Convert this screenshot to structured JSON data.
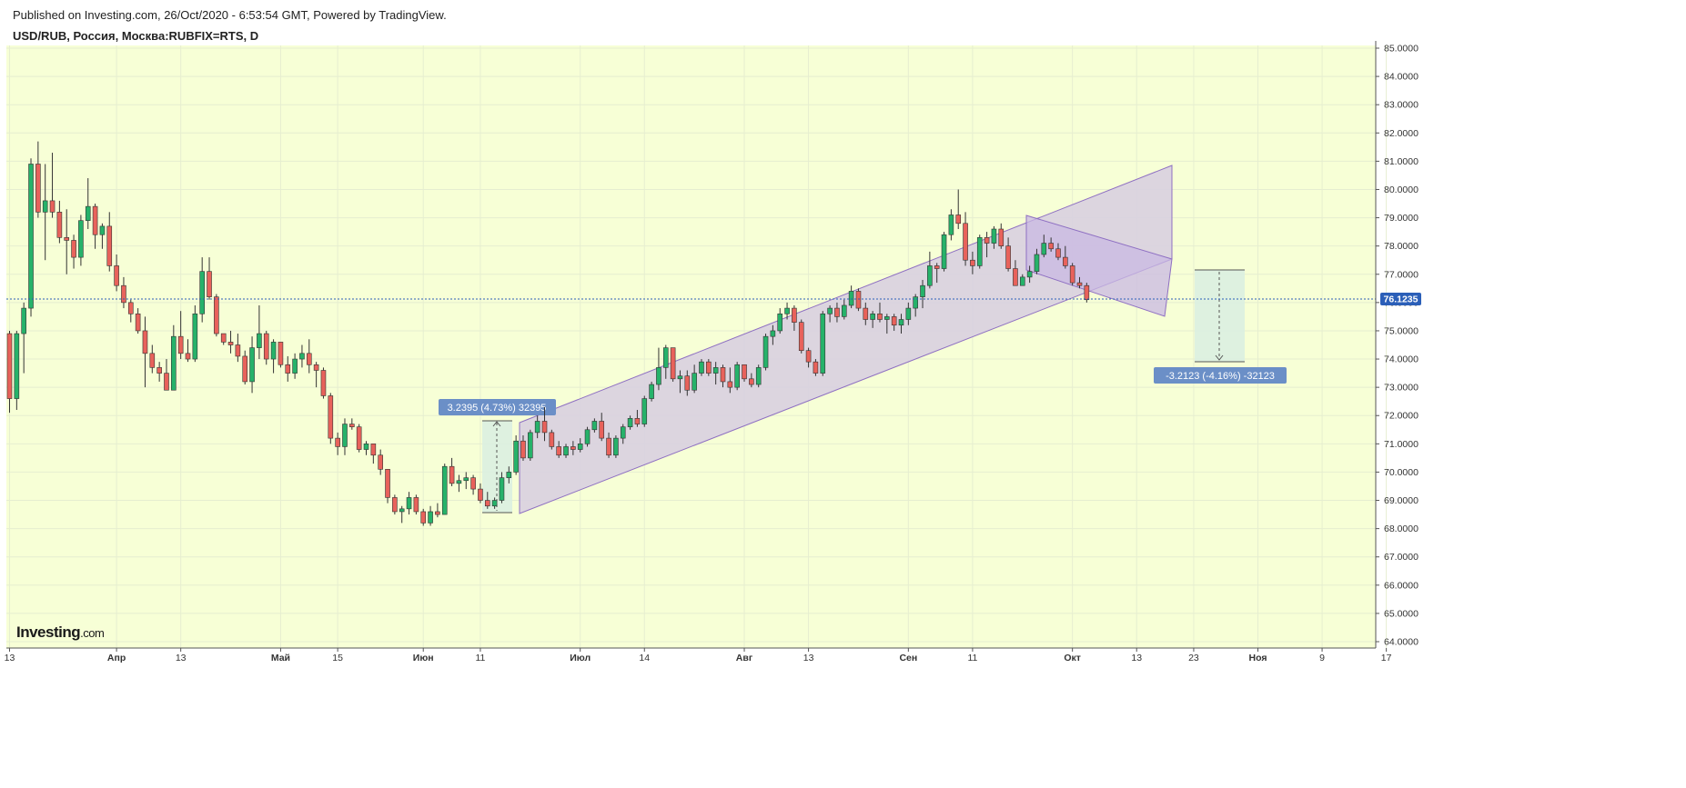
{
  "header": {
    "published": "Published on Investing.com, 26/Oct/2020 - 6:53:54 GMT, Powered by TradingView.",
    "symbol": "USD/RUB, Россия, Москва:RUBFIX=RTS, D"
  },
  "logo": {
    "main": "Investing",
    "suffix": ".com"
  },
  "colors": {
    "background": "#f7ffd6",
    "up": "#26b26a",
    "down": "#e8625b",
    "grid": "#e6eed0",
    "channel_fill": "#d8d0e0",
    "flag_fill": "#c9b8e3",
    "channel_line": "#8e6fc2",
    "label_bg": "#6b8fc7",
    "measure_fill": "#d9efe2",
    "last_price_line": "#2b5fb8"
  },
  "chart_data": {
    "type": "candlestick",
    "ylim": [
      63.8,
      85.2
    ],
    "y_ticks": [
      "85.0000",
      "84.0000",
      "83.0000",
      "82.0000",
      "81.0000",
      "80.0000",
      "79.0000",
      "78.0000",
      "77.0000",
      "76.0000",
      "75.0000",
      "74.0000",
      "73.0000",
      "72.0000",
      "71.0000",
      "70.0000",
      "69.0000",
      "68.0000",
      "67.0000",
      "66.0000",
      "65.0000",
      "64.0000"
    ],
    "x_ticks": [
      {
        "label": "13",
        "i": 0,
        "month": false
      },
      {
        "label": "Апр",
        "i": 15,
        "month": true
      },
      {
        "label": "13",
        "i": 24,
        "month": false
      },
      {
        "label": "Май",
        "i": 38,
        "month": true
      },
      {
        "label": "15",
        "i": 46,
        "month": false
      },
      {
        "label": "Июн",
        "i": 58,
        "month": true
      },
      {
        "label": "11",
        "i": 66,
        "month": false
      },
      {
        "label": "Июл",
        "i": 80,
        "month": true
      },
      {
        "label": "14",
        "i": 89,
        "month": false
      },
      {
        "label": "Авг",
        "i": 103,
        "month": true
      },
      {
        "label": "13",
        "i": 112,
        "month": false
      },
      {
        "label": "Сен",
        "i": 126,
        "month": true
      },
      {
        "label": "11",
        "i": 135,
        "month": false
      },
      {
        "label": "Окт",
        "i": 149,
        "month": true
      },
      {
        "label": "13",
        "i": 158,
        "month": false
      },
      {
        "label": "23",
        "i": 166,
        "month": false
      },
      {
        "label": "Ноя",
        "i": 175,
        "month": true
      },
      {
        "label": "9",
        "i": 184,
        "month": false
      },
      {
        "label": "17",
        "i": 193,
        "month": false
      }
    ],
    "last_price": "76.1235",
    "candles": [
      [
        74.9,
        75.0,
        72.1,
        72.6
      ],
      [
        72.6,
        75.0,
        72.2,
        74.9
      ],
      [
        74.9,
        76.0,
        73.5,
        75.8
      ],
      [
        75.8,
        81.1,
        75.5,
        80.9
      ],
      [
        80.9,
        81.7,
        79.0,
        79.2
      ],
      [
        79.2,
        80.9,
        77.5,
        79.6
      ],
      [
        79.6,
        81.3,
        79.0,
        79.2
      ],
      [
        79.2,
        79.6,
        78.1,
        78.3
      ],
      [
        78.3,
        79.3,
        77.0,
        78.2
      ],
      [
        78.2,
        78.4,
        77.2,
        77.6
      ],
      [
        77.6,
        79.1,
        77.3,
        78.9
      ],
      [
        78.9,
        80.4,
        78.6,
        79.4
      ],
      [
        79.4,
        79.5,
        77.9,
        78.4
      ],
      [
        78.4,
        78.8,
        77.9,
        78.7
      ],
      [
        78.7,
        79.2,
        77.1,
        77.3
      ],
      [
        77.3,
        77.7,
        76.4,
        76.6
      ],
      [
        76.6,
        76.9,
        75.8,
        76.0
      ],
      [
        76.0,
        76.1,
        75.3,
        75.6
      ],
      [
        75.6,
        75.8,
        74.9,
        75.0
      ],
      [
        75.0,
        75.5,
        73.0,
        74.2
      ],
      [
        74.2,
        74.5,
        73.5,
        73.7
      ],
      [
        73.7,
        73.9,
        73.2,
        73.5
      ],
      [
        73.5,
        74.0,
        72.9,
        72.9
      ],
      [
        72.9,
        75.2,
        72.9,
        74.8
      ],
      [
        74.8,
        75.7,
        74.0,
        74.2
      ],
      [
        74.2,
        74.7,
        73.9,
        74.0
      ],
      [
        74.0,
        75.9,
        73.9,
        75.6
      ],
      [
        75.6,
        77.6,
        75.3,
        77.1
      ],
      [
        77.1,
        77.6,
        76.1,
        76.2
      ],
      [
        76.2,
        76.3,
        74.8,
        74.9
      ],
      [
        74.9,
        74.9,
        74.5,
        74.6
      ],
      [
        74.6,
        75.0,
        74.2,
        74.5
      ],
      [
        74.5,
        74.9,
        73.9,
        74.1
      ],
      [
        74.1,
        74.3,
        73.1,
        73.2
      ],
      [
        73.2,
        74.8,
        72.8,
        74.4
      ],
      [
        74.4,
        75.9,
        74.0,
        74.9
      ],
      [
        74.9,
        75.0,
        73.8,
        74.0
      ],
      [
        74.0,
        74.7,
        73.5,
        74.6
      ],
      [
        74.6,
        74.6,
        73.7,
        73.8
      ],
      [
        73.8,
        74.1,
        73.2,
        73.5
      ],
      [
        73.5,
        74.2,
        73.3,
        74.0
      ],
      [
        74.0,
        74.5,
        73.7,
        74.2
      ],
      [
        74.2,
        74.7,
        73.5,
        73.8
      ],
      [
        73.8,
        73.9,
        73.0,
        73.6
      ],
      [
        73.6,
        73.7,
        72.6,
        72.7
      ],
      [
        72.7,
        72.8,
        71.0,
        71.2
      ],
      [
        71.2,
        71.4,
        70.6,
        70.9
      ],
      [
        70.9,
        71.9,
        70.6,
        71.7
      ],
      [
        71.7,
        71.9,
        71.5,
        71.6
      ],
      [
        71.6,
        71.7,
        70.7,
        70.8
      ],
      [
        70.8,
        71.1,
        70.6,
        71.0
      ],
      [
        71.0,
        71.0,
        70.3,
        70.6
      ],
      [
        70.6,
        70.8,
        69.9,
        70.1
      ],
      [
        70.1,
        70.1,
        68.9,
        69.1
      ],
      [
        69.1,
        69.2,
        68.5,
        68.6
      ],
      [
        68.6,
        68.8,
        68.2,
        68.7
      ],
      [
        68.7,
        69.3,
        68.5,
        69.1
      ],
      [
        69.1,
        69.2,
        68.5,
        68.6
      ],
      [
        68.6,
        68.7,
        68.1,
        68.2
      ],
      [
        68.2,
        68.8,
        68.1,
        68.6
      ],
      [
        68.6,
        68.9,
        68.4,
        68.5
      ],
      [
        68.5,
        70.3,
        68.5,
        70.2
      ],
      [
        70.2,
        70.5,
        69.5,
        69.6
      ],
      [
        69.6,
        69.9,
        69.3,
        69.7
      ],
      [
        69.7,
        70.0,
        69.4,
        69.8
      ],
      [
        69.8,
        69.9,
        69.2,
        69.4
      ],
      [
        69.4,
        69.6,
        68.9,
        69.0
      ],
      [
        69.0,
        69.3,
        68.7,
        68.8
      ],
      [
        68.8,
        69.1,
        68.7,
        69.0
      ],
      [
        69.0,
        70.0,
        68.9,
        69.8
      ],
      [
        69.8,
        70.2,
        69.6,
        70.0
      ],
      [
        70.0,
        71.3,
        69.9,
        71.1
      ],
      [
        71.1,
        71.3,
        70.4,
        70.5
      ],
      [
        70.5,
        71.5,
        70.4,
        71.4
      ],
      [
        71.4,
        72.0,
        71.2,
        71.8
      ],
      [
        71.8,
        72.3,
        71.1,
        71.4
      ],
      [
        71.4,
        71.5,
        70.8,
        70.9
      ],
      [
        70.9,
        71.1,
        70.5,
        70.6
      ],
      [
        70.6,
        71.0,
        70.5,
        70.9
      ],
      [
        70.9,
        71.1,
        70.6,
        70.8
      ],
      [
        70.8,
        71.2,
        70.7,
        71.0
      ],
      [
        71.0,
        71.6,
        70.9,
        71.5
      ],
      [
        71.5,
        71.9,
        71.4,
        71.8
      ],
      [
        71.8,
        72.1,
        71.1,
        71.2
      ],
      [
        71.2,
        71.4,
        70.5,
        70.6
      ],
      [
        70.6,
        71.3,
        70.5,
        71.2
      ],
      [
        71.2,
        71.7,
        71.0,
        71.6
      ],
      [
        71.6,
        72.0,
        71.5,
        71.9
      ],
      [
        71.9,
        72.2,
        71.6,
        71.7
      ],
      [
        71.7,
        72.7,
        71.6,
        72.6
      ],
      [
        72.6,
        73.2,
        72.5,
        73.1
      ],
      [
        73.1,
        74.4,
        72.9,
        73.7
      ],
      [
        73.7,
        74.5,
        73.3,
        74.4
      ],
      [
        74.4,
        74.4,
        73.2,
        73.3
      ],
      [
        73.3,
        73.6,
        72.8,
        73.4
      ],
      [
        73.4,
        73.6,
        72.7,
        72.9
      ],
      [
        72.9,
        73.8,
        72.8,
        73.5
      ],
      [
        73.5,
        74.0,
        73.4,
        73.9
      ],
      [
        73.9,
        74.0,
        73.4,
        73.5
      ],
      [
        73.5,
        73.9,
        73.1,
        73.7
      ],
      [
        73.7,
        73.8,
        73.0,
        73.2
      ],
      [
        73.2,
        73.7,
        72.8,
        73.0
      ],
      [
        73.0,
        73.9,
        72.9,
        73.8
      ],
      [
        73.8,
        73.8,
        73.2,
        73.3
      ],
      [
        73.3,
        73.5,
        73.0,
        73.1
      ],
      [
        73.1,
        73.8,
        73.0,
        73.7
      ],
      [
        73.7,
        74.9,
        73.6,
        74.8
      ],
      [
        74.8,
        75.2,
        74.5,
        75.0
      ],
      [
        75.0,
        75.8,
        74.9,
        75.6
      ],
      [
        75.6,
        76.0,
        75.4,
        75.8
      ],
      [
        75.8,
        75.9,
        75.0,
        75.3
      ],
      [
        75.3,
        75.4,
        74.2,
        74.3
      ],
      [
        74.3,
        74.4,
        73.7,
        73.9
      ],
      [
        73.9,
        74.0,
        73.4,
        73.5
      ],
      [
        73.5,
        75.7,
        73.4,
        75.6
      ],
      [
        75.6,
        75.9,
        75.3,
        75.8
      ],
      [
        75.8,
        76.0,
        75.3,
        75.5
      ],
      [
        75.5,
        76.1,
        75.4,
        75.9
      ],
      [
        75.9,
        76.6,
        75.8,
        76.4
      ],
      [
        76.4,
        76.5,
        75.7,
        75.8
      ],
      [
        75.8,
        76.0,
        75.2,
        75.4
      ],
      [
        75.4,
        75.7,
        75.1,
        75.6
      ],
      [
        75.6,
        76.0,
        75.3,
        75.4
      ],
      [
        75.4,
        75.6,
        74.9,
        75.5
      ],
      [
        75.5,
        75.6,
        75.0,
        75.2
      ],
      [
        75.2,
        75.6,
        74.9,
        75.4
      ],
      [
        75.4,
        76.0,
        75.2,
        75.8
      ],
      [
        75.8,
        76.3,
        75.5,
        76.2
      ],
      [
        76.2,
        76.8,
        75.8,
        76.6
      ],
      [
        76.6,
        77.8,
        76.5,
        77.3
      ],
      [
        77.3,
        77.4,
        76.7,
        77.2
      ],
      [
        77.2,
        78.5,
        77.1,
        78.4
      ],
      [
        78.4,
        79.3,
        78.2,
        79.1
      ],
      [
        79.1,
        80.0,
        78.6,
        78.8
      ],
      [
        78.8,
        79.2,
        77.3,
        77.5
      ],
      [
        77.5,
        77.8,
        77.0,
        77.3
      ],
      [
        77.3,
        78.4,
        77.2,
        78.3
      ],
      [
        78.3,
        78.5,
        77.6,
        78.1
      ],
      [
        78.1,
        78.7,
        77.9,
        78.6
      ],
      [
        78.6,
        78.8,
        77.9,
        78.0
      ],
      [
        78.0,
        78.3,
        77.1,
        77.2
      ],
      [
        77.2,
        77.5,
        76.8,
        76.6
      ],
      [
        76.6,
        77.0,
        76.6,
        76.9
      ],
      [
        76.9,
        77.3,
        76.7,
        77.1
      ],
      [
        77.1,
        77.9,
        77.0,
        77.7
      ],
      [
        77.7,
        78.4,
        77.6,
        78.1
      ],
      [
        78.1,
        78.3,
        77.8,
        77.9
      ],
      [
        77.9,
        78.1,
        77.5,
        77.6
      ],
      [
        77.6,
        78.0,
        77.2,
        77.3
      ],
      [
        77.3,
        77.4,
        76.6,
        76.7
      ],
      [
        76.7,
        76.9,
        76.5,
        76.6
      ],
      [
        76.6,
        76.7,
        76.0,
        76.1
      ]
    ]
  },
  "annotations": {
    "measure_up": "3.2395 (4.73%) 32395",
    "measure_down": "-3.2123 (-4.16%) -32123"
  }
}
